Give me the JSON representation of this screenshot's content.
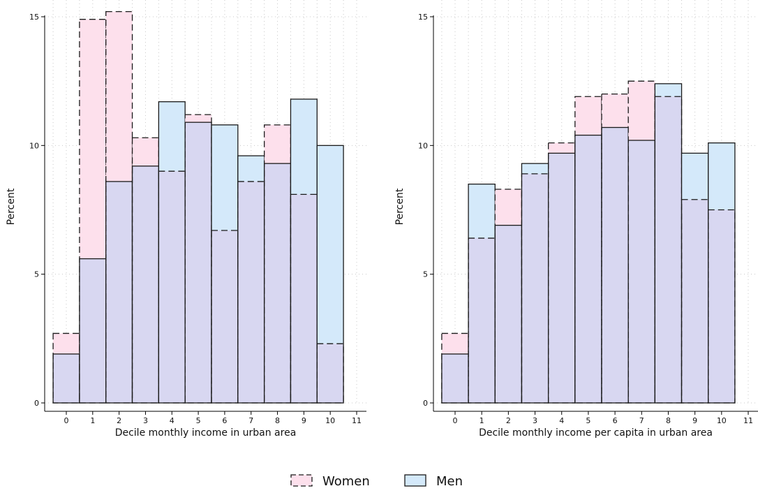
{
  "colors": {
    "women_fill": "#fde0ec",
    "men_fill": "#d4e9fa",
    "overlap_fill": "#d8d7f1",
    "outline": "#1a1a1a",
    "grid": "#c8c8c8"
  },
  "legend": {
    "position": "bottom-center",
    "items": [
      {
        "label": "Women",
        "style": "dashed",
        "color": "#fde0ec"
      },
      {
        "label": "Men",
        "style": "solid",
        "color": "#d4e9fa"
      }
    ]
  },
  "chart_data": [
    {
      "type": "bar",
      "subtype": "overlaid-histogram",
      "xlabel": "Decile monthly income in urban area",
      "ylabel": "Percent",
      "xlim": [
        -0.5,
        11
      ],
      "ylim": [
        0,
        15
      ],
      "x_ticks": [
        0,
        1,
        2,
        3,
        4,
        5,
        6,
        7,
        8,
        9,
        10,
        11
      ],
      "y_ticks": [
        0,
        5,
        10,
        15
      ],
      "grid": true,
      "categories": [
        0,
        1,
        2,
        3,
        4,
        5,
        6,
        7,
        8,
        9,
        10
      ],
      "series": [
        {
          "name": "Women",
          "values": [
            2.7,
            14.9,
            15.2,
            10.3,
            9.0,
            11.2,
            6.7,
            8.6,
            10.8,
            8.1,
            2.3
          ]
        },
        {
          "name": "Men",
          "values": [
            1.9,
            5.6,
            8.6,
            9.2,
            11.7,
            10.9,
            10.8,
            9.6,
            9.3,
            11.8,
            10.0
          ]
        }
      ]
    },
    {
      "type": "bar",
      "subtype": "overlaid-histogram",
      "xlabel": "Decile monthly income per capita in urban area",
      "ylabel": "Percent",
      "xlim": [
        -0.5,
        11
      ],
      "ylim": [
        0,
        15
      ],
      "x_ticks": [
        0,
        1,
        2,
        3,
        4,
        5,
        6,
        7,
        8,
        9,
        10,
        11
      ],
      "y_ticks": [
        0,
        5,
        10,
        15
      ],
      "grid": true,
      "categories": [
        0,
        1,
        2,
        3,
        4,
        5,
        6,
        7,
        8,
        9,
        10
      ],
      "series": [
        {
          "name": "Women",
          "values": [
            2.7,
            6.4,
            8.3,
            8.9,
            10.1,
            11.9,
            12.0,
            12.5,
            11.9,
            7.9,
            7.5
          ]
        },
        {
          "name": "Men",
          "values": [
            1.9,
            8.5,
            6.9,
            9.3,
            9.7,
            10.4,
            10.7,
            10.2,
            12.4,
            9.7,
            10.1
          ]
        }
      ]
    }
  ]
}
